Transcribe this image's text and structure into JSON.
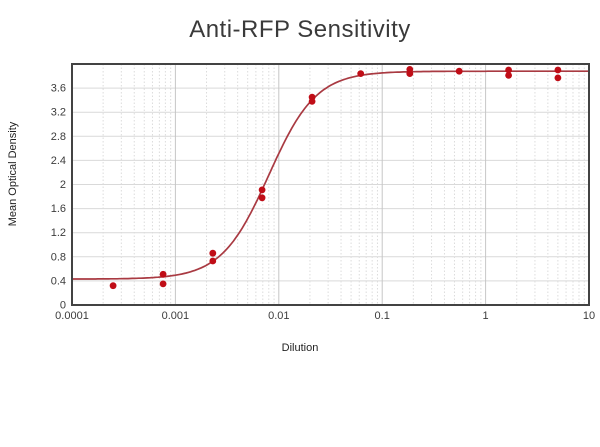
{
  "chart_data": {
    "type": "scatter",
    "title": "Anti-RFP Sensitivity",
    "xlabel": "Dilution",
    "ylabel": "Mean Optical Density",
    "x_scale": "log",
    "xlim": [
      0.0001,
      10
    ],
    "ylim": [
      0,
      4
    ],
    "y_tick_step": 0.4,
    "y_ticks": [
      {
        "value": 0,
        "label": "0"
      },
      {
        "value": 0.4,
        "label": "0.4"
      },
      {
        "value": 0.8,
        "label": "0.8"
      },
      {
        "value": 1.2,
        "label": "1.2"
      },
      {
        "value": 1.6,
        "label": "1.6"
      },
      {
        "value": 2,
        "label": "2"
      },
      {
        "value": 2.4,
        "label": "2.4"
      },
      {
        "value": 2.8,
        "label": "2.8"
      },
      {
        "value": 3.2,
        "label": "3.2"
      },
      {
        "value": 3.6,
        "label": "3.6"
      }
    ],
    "x_ticks": [
      {
        "value": 0.0001,
        "label": "0.0001"
      },
      {
        "value": 0.001,
        "label": "0.001"
      },
      {
        "value": 0.01,
        "label": "0.01"
      },
      {
        "value": 0.1,
        "label": "0.1"
      },
      {
        "value": 1,
        "label": "1"
      },
      {
        "value": 10,
        "label": "10"
      }
    ],
    "grid": {
      "horizontal_major": true,
      "vertical_log_minor": true,
      "legend": "none"
    },
    "points": [
      {
        "dilution": 0.00025,
        "od": 0.32
      },
      {
        "dilution": 0.00076,
        "od": 0.51
      },
      {
        "dilution": 0.00076,
        "od": 0.35
      },
      {
        "dilution": 0.0023,
        "od": 0.86
      },
      {
        "dilution": 0.0023,
        "od": 0.73
      },
      {
        "dilution": 0.0069,
        "od": 1.91
      },
      {
        "dilution": 0.0069,
        "od": 1.78
      },
      {
        "dilution": 0.021,
        "od": 3.45
      },
      {
        "dilution": 0.021,
        "od": 3.38
      },
      {
        "dilution": 0.062,
        "od": 3.84
      },
      {
        "dilution": 0.185,
        "od": 3.91
      },
      {
        "dilution": 0.185,
        "od": 3.84
      },
      {
        "dilution": 0.556,
        "od": 3.88
      },
      {
        "dilution": 1.67,
        "od": 3.9
      },
      {
        "dilution": 1.67,
        "od": 3.81
      },
      {
        "dilution": 5,
        "od": 3.9
      },
      {
        "dilution": 5,
        "od": 3.77
      }
    ],
    "fit_curve": {
      "model": "4PL",
      "bottom": 0.43,
      "top": 3.88,
      "ec50": 0.008,
      "hill": 1.9
    },
    "colors": {
      "point": "#c00d17",
      "curve": "#a93a42",
      "frame": "#434343",
      "grid_major": "#c6c6c6",
      "grid_minor": "#dcdcdc",
      "grid_horizontal": "#d9d9d9"
    }
  }
}
